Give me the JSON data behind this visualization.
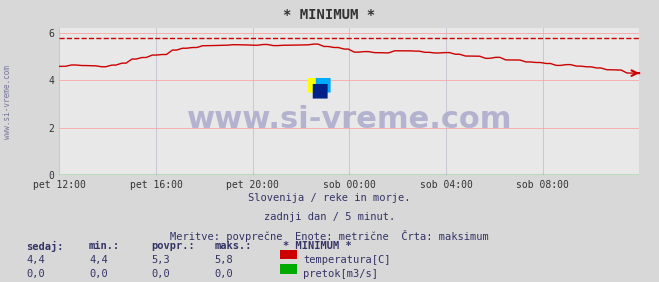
{
  "title": "* MINIMUM *",
  "bg_color": "#d8d8d8",
  "plot_bg_color": "#e8e8e8",
  "grid_color_h": "#ff9999",
  "grid_color_v": "#bbbbcc",
  "x_labels": [
    "pet 12:00",
    "pet 16:00",
    "pet 20:00",
    "sob 00:00",
    "sob 04:00",
    "sob 08:00"
  ],
  "x_ticks_norm": [
    0.0,
    0.1667,
    0.3333,
    0.5,
    0.6667,
    0.8333,
    1.0
  ],
  "y_ticks": [
    0,
    2,
    4,
    6
  ],
  "ylim": [
    0,
    6.2
  ],
  "temp_color": "#cc0000",
  "flow_color": "#00aa00",
  "dashed_color": "#cc0000",
  "watermark_text": "www.si-vreme.com",
  "watermark_color": "#aaaacc",
  "watermark_alpha": 0.7,
  "subtitle1": "Slovenija / reke in morje.",
  "subtitle2": "zadnji dan / 5 minut.",
  "subtitle3": "Meritve: povprečne  Enote: metrične  Črta: maksimum",
  "subtitle_color": "#333366",
  "ylabel_text": "www.si-vreme.com",
  "ylabel_color": "#777799",
  "legend_title": "* MINIMUM *",
  "legend_items": [
    "temperatura[C]",
    "pretok[m3/s]"
  ],
  "legend_colors": [
    "#cc0000",
    "#00aa00"
  ],
  "stats_headers": [
    "sedaj:",
    "min.:",
    "povpr.:",
    "maks.:"
  ],
  "stats_temp": [
    "4,4",
    "4,4",
    "5,3",
    "5,8"
  ],
  "stats_flow": [
    "0,0",
    "0,0",
    "0,0",
    "0,0"
  ],
  "stats_color": "#333366",
  "max_line_value": 5.8,
  "n_points": 288
}
